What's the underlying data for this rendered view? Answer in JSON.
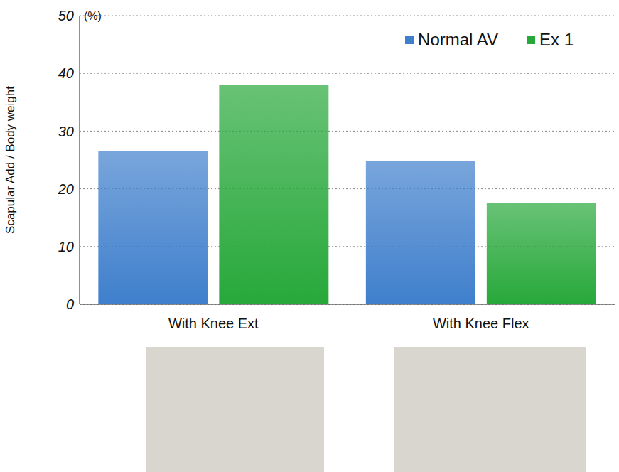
{
  "chart_data": {
    "type": "bar",
    "categories": [
      "With Knee Ext",
      "With Knee Flex"
    ],
    "series": [
      {
        "name": "Normal AV",
        "color": "#3f7fcc",
        "values": [
          26.5,
          24.8
        ]
      },
      {
        "name": "Ex 1",
        "color": "#27a83a",
        "values": [
          38,
          17.5
        ]
      }
    ],
    "y_label": "Scapular Add  / Body weight",
    "annotations": [
      "(%)"
    ],
    "ylim": [
      0,
      50
    ],
    "yticks": [
      0,
      10,
      20,
      30,
      40,
      50
    ],
    "grid": true,
    "legend": "upper right"
  }
}
